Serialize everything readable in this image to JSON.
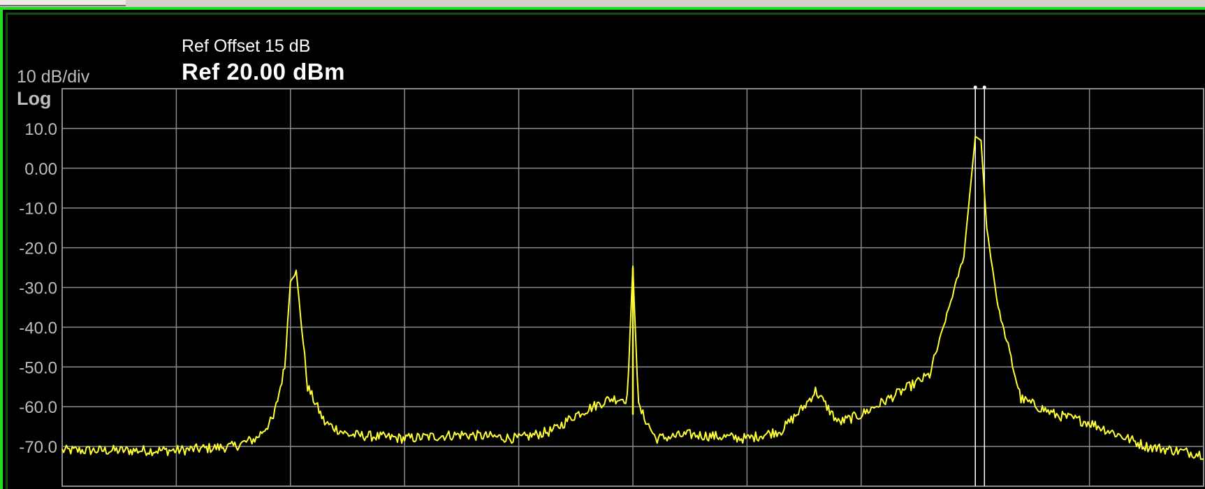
{
  "header": {
    "ref_offset": "Ref Offset 15 dB",
    "ref_level": "Ref 20.00 dBm",
    "scale_per_div": "10 dB/div",
    "scale_type": "Log"
  },
  "colors": {
    "frame_border": "#22dd22",
    "background": "#000000",
    "trace": "#ffff33",
    "grid": "#8c8c8c",
    "tick_label": "#bdbdbd",
    "marker": "#ffffff"
  },
  "chart_data": {
    "type": "line",
    "title": "",
    "xlabel": "",
    "ylabel": "",
    "y_unit": "dBm",
    "x_divisions": 10,
    "xlim": [
      0,
      10
    ],
    "ylim": [
      -80,
      20
    ],
    "yticks": [
      10,
      0,
      -10,
      -20,
      -30,
      -40,
      -50,
      -60,
      -70
    ],
    "ytick_labels": [
      "10.0",
      "0.00",
      "-10.0",
      "-20.0",
      "-30.0",
      "-40.0",
      "-50.0",
      "-60.0",
      "-70.0"
    ],
    "grid": true,
    "markers": [
      {
        "x": 8.0
      },
      {
        "x": 8.08
      }
    ],
    "series": [
      {
        "x": [
          0,
          0.5,
          1.0,
          1.5,
          1.7,
          1.85,
          1.95,
          2.0,
          2.05,
          2.15,
          2.3,
          2.5,
          3.0,
          3.5,
          4.0,
          4.3,
          4.5,
          4.8,
          4.95,
          5.0,
          5.05,
          5.2,
          5.5,
          6.0,
          6.3,
          6.5,
          6.6,
          6.7,
          6.8,
          7.0,
          7.3,
          7.6,
          7.9,
          8.0,
          8.05,
          8.1,
          8.2,
          8.4,
          8.7,
          9.0,
          9.5,
          10.0
        ],
        "values": [
          -71,
          -71,
          -71,
          -70,
          -68,
          -63,
          -50,
          -28,
          -26,
          -55,
          -64,
          -67,
          -68,
          -67,
          -68,
          -66,
          -62,
          -58,
          -58,
          -25,
          -60,
          -68,
          -67,
          -68,
          -66,
          -60,
          -56,
          -60,
          -64,
          -62,
          -57,
          -52,
          -22,
          8,
          7,
          -15,
          -35,
          -58,
          -62,
          -64,
          -70,
          -72
        ]
      }
    ]
  }
}
